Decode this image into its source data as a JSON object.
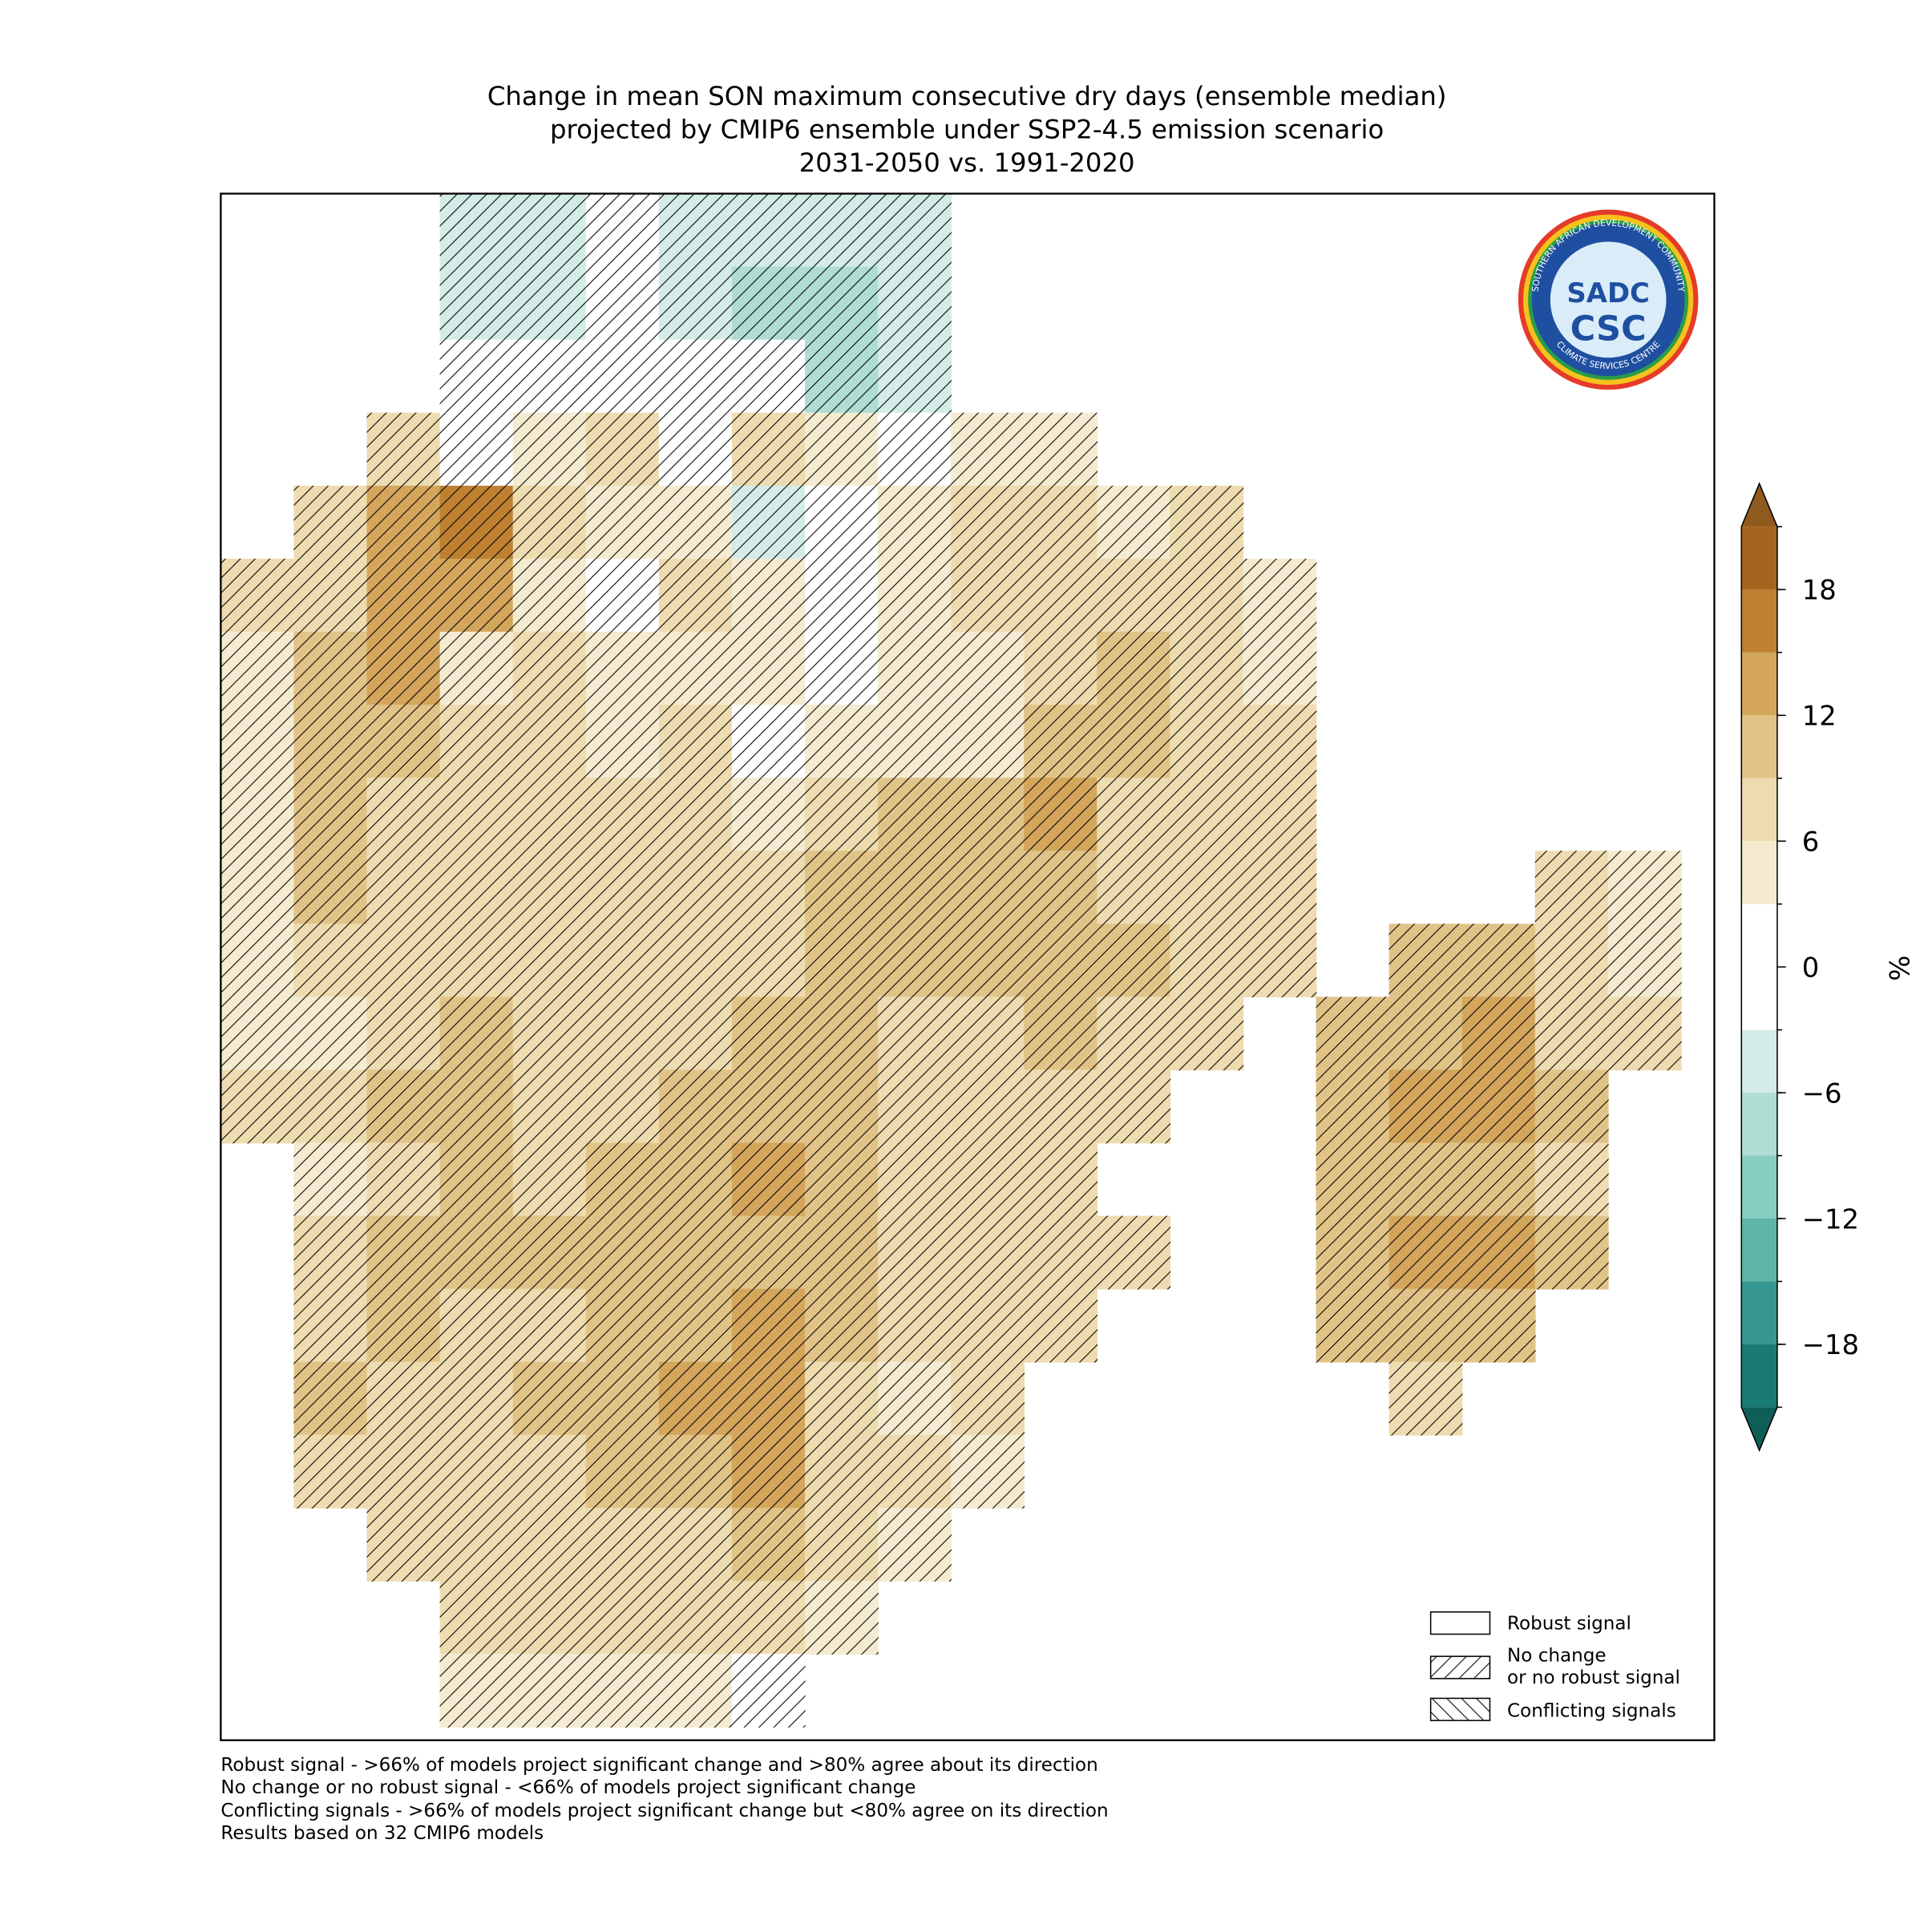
{
  "chart_data": {
    "type": "map",
    "title": [
      "Change in mean SON maximum consecutive dry days (ensemble median)",
      "projected by CMIP6 ensemble under SSP2-4.5 emission scenario",
      "2031-2050 vs. 1991-2020"
    ],
    "colorbar_label": "%",
    "clim": [
      -21,
      21
    ],
    "levels": [
      -21,
      -18,
      -15,
      -12,
      -9,
      -6,
      -3,
      3,
      6,
      9,
      12,
      15,
      18,
      21
    ],
    "colors": [
      "#1a7b73",
      "#35978f",
      "#5fb6a8",
      "#87cdc0",
      "#afddd4",
      "#d4ece7",
      "#ffffff",
      "#f5ebd0",
      "#eedcb0",
      "#e2c387",
      "#d3a65c",
      "#bf8131",
      "#a6651f"
    ],
    "under_color": "#0f5f58",
    "over_color": "#8f5a1d",
    "cticks": [
      {
        "value": -18,
        "label": "−18"
      },
      {
        "value": -12,
        "label": "−12"
      },
      {
        "value": -6,
        "label": "−6"
      },
      0,
      6,
      12,
      18
    ],
    "grid": [
      [
        null,
        null,
        null,
        -4,
        -4,
        -3,
        -4,
        -5,
        -6,
        -4,
        null,
        null,
        null,
        null,
        null,
        null,
        null,
        null,
        null,
        null
      ],
      [
        null,
        null,
        null,
        -4,
        -4,
        0,
        -4,
        -7,
        -8,
        -4,
        null,
        null,
        null,
        null,
        null,
        null,
        null,
        null,
        null,
        null
      ],
      [
        null,
        null,
        null,
        2,
        0,
        0,
        0,
        -2,
        -9,
        -4,
        null,
        null,
        null,
        null,
        null,
        null,
        null,
        null,
        null,
        null
      ],
      [
        null,
        null,
        6,
        0,
        4,
        7,
        2,
        6,
        4,
        2,
        4,
        5,
        null,
        null,
        null,
        null,
        null,
        null,
        null,
        null
      ],
      [
        null,
        6,
        14,
        15,
        8,
        4,
        4,
        -4,
        2,
        4,
        6,
        6,
        5,
        6,
        null,
        null,
        null,
        null,
        null,
        null
      ],
      [
        6,
        8,
        12,
        13,
        4,
        2,
        6,
        4,
        2,
        4,
        6,
        8,
        8,
        7,
        5,
        null,
        null,
        null,
        null,
        null
      ],
      [
        5,
        10,
        13,
        4,
        6,
        5,
        5,
        4,
        2,
        4,
        4,
        8,
        9,
        7,
        5,
        null,
        null,
        null,
        null,
        null
      ],
      [
        4,
        9,
        9,
        8,
        6,
        4,
        6,
        2,
        4,
        5,
        5,
        10,
        9,
        7,
        6,
        null,
        null,
        null,
        null,
        null
      ],
      [
        4,
        10,
        8,
        7,
        6,
        6,
        7,
        4,
        7,
        9,
        9,
        12,
        8,
        6,
        7,
        null,
        null,
        null,
        null,
        null
      ],
      [
        5,
        9,
        6,
        6,
        7,
        8,
        8,
        8,
        10,
        9,
        9,
        10,
        8,
        7,
        7,
        null,
        null,
        null,
        6,
        5
      ],
      [
        4,
        6,
        7,
        7,
        7,
        8,
        8,
        8,
        9,
        9,
        9,
        10,
        9,
        8,
        7,
        null,
        10,
        11,
        7,
        5
      ],
      [
        4,
        5,
        7,
        9,
        8,
        8,
        8,
        9,
        9,
        8,
        8,
        9,
        8,
        7,
        null,
        9,
        9,
        12,
        8,
        6
      ],
      [
        7,
        8,
        10,
        10,
        8,
        8,
        9,
        10,
        9,
        8,
        8,
        8,
        7,
        null,
        null,
        9,
        12,
        14,
        9,
        null
      ],
      [
        null,
        4,
        8,
        9,
        8,
        9,
        10,
        12,
        10,
        8,
        7,
        7,
        null,
        null,
        null,
        10,
        11,
        11,
        8,
        null
      ],
      [
        null,
        6,
        11,
        9,
        9,
        10,
        11,
        10,
        9,
        8,
        8,
        8,
        6,
        null,
        null,
        10,
        12,
        12,
        9,
        null
      ],
      [
        null,
        7,
        9,
        8,
        8,
        10,
        11,
        13,
        10,
        8,
        7,
        7,
        null,
        null,
        null,
        9,
        9,
        10,
        null,
        null
      ],
      [
        null,
        11,
        8,
        7,
        9,
        11,
        13,
        12,
        8,
        4,
        6,
        null,
        null,
        null,
        null,
        null,
        6,
        null,
        null,
        null
      ],
      [
        null,
        6,
        7,
        7,
        8,
        9,
        11,
        13,
        8,
        6,
        5,
        null,
        null,
        null,
        null,
        null,
        null,
        null,
        null,
        null
      ],
      [
        null,
        null,
        6,
        8,
        8,
        7,
        7,
        10,
        8,
        5,
        null,
        null,
        null,
        null,
        null,
        null,
        null,
        null,
        null,
        null
      ],
      [
        null,
        null,
        null,
        6,
        6,
        7,
        8,
        6,
        4,
        null,
        null,
        null,
        null,
        null,
        null,
        null,
        null,
        null,
        null,
        null
      ],
      [
        null,
        null,
        null,
        5,
        4,
        4,
        5,
        2,
        null,
        null,
        null,
        null,
        null,
        null,
        null,
        null,
        null,
        null,
        null,
        null
      ]
    ],
    "legend": {
      "robust": "Robust signal",
      "no_change": [
        "No change",
        "or no robust signal"
      ],
      "conflicting": "Conflicting signals"
    },
    "footnotes": [
      "Robust signal - >66% of models project significant change and >80% agree about its direction",
      "No change or no robust signal - <66% of models project significant change",
      "Conflicting signals - >66% of models project significant change but <80% agree on its direction",
      "Results based on 32 CMIP6 models"
    ],
    "logo": {
      "ring_top": "SOUTHERN AFRICAN DEVELOPMENT COMMUNITY",
      "ring_bottom": "CLIMATE SERVICES CENTRE",
      "top": "SADC",
      "bottom": "CSC"
    }
  }
}
